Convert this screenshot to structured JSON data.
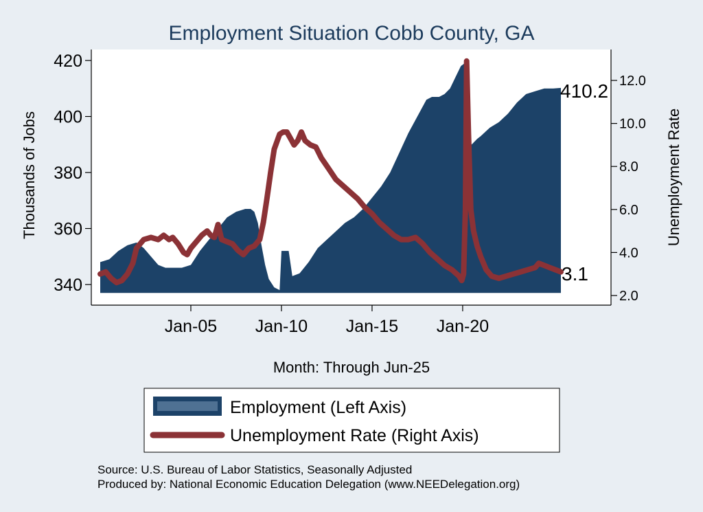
{
  "chart_data": {
    "type": "area+line",
    "title": "Employment Situation Cobb  County, GA",
    "xlabel": "Month: Through Jun-25",
    "ylabel_left": "Thousands of Jobs",
    "ylabel_right": "Unemployment Rate",
    "x_ticks": [
      "Jan-05",
      "Jan-10",
      "Jan-15",
      "Jan-20"
    ],
    "x_tick_years": [
      2005,
      2010,
      2015,
      2020
    ],
    "xlim": [
      2000.0,
      2025.42
    ],
    "y_left_ticks": [
      "340",
      "360",
      "380",
      "400",
      "420"
    ],
    "y_left_values": [
      340,
      360,
      380,
      400,
      420
    ],
    "y_left_range": [
      336,
      422
    ],
    "y_right_ticks": [
      "2.0",
      "4.0",
      "6.0",
      "8.0",
      "10.0",
      "12.0"
    ],
    "y_right_values": [
      2,
      4,
      6,
      8,
      10,
      12
    ],
    "y_right_range": [
      1.9,
      12.4
    ],
    "area_baseline": 337,
    "colors": {
      "employment": "#1c4268",
      "unemployment": "#8b3236",
      "legend_swatch_inner": "#4f7193",
      "background": "#e9eef3",
      "title": "#1c3b5c"
    },
    "end_labels": {
      "employment": "410.2",
      "unemployment": "3.1"
    },
    "series": [
      {
        "name": "Employment (Left Axis)",
        "axis": "left",
        "kind": "area",
        "points": [
          [
            2000.0,
            348
          ],
          [
            2000.5,
            349
          ],
          [
            2001.0,
            352
          ],
          [
            2001.5,
            354
          ],
          [
            2002.0,
            355
          ],
          [
            2002.4,
            353
          ],
          [
            2002.8,
            350
          ],
          [
            2003.2,
            347
          ],
          [
            2003.6,
            346
          ],
          [
            2004.0,
            346
          ],
          [
            2004.5,
            346
          ],
          [
            2005.0,
            347
          ],
          [
            2005.5,
            352
          ],
          [
            2006.0,
            356
          ],
          [
            2006.5,
            360
          ],
          [
            2007.0,
            364
          ],
          [
            2007.5,
            366
          ],
          [
            2008.0,
            367
          ],
          [
            2008.3,
            367
          ],
          [
            2008.5,
            366
          ],
          [
            2008.7,
            362
          ],
          [
            2008.9,
            354
          ],
          [
            2009.1,
            347
          ],
          [
            2009.3,
            342
          ],
          [
            2009.6,
            339
          ],
          [
            2009.9,
            338
          ],
          [
            2010.0,
            352
          ],
          [
            2010.4,
            352
          ],
          [
            2010.6,
            343
          ],
          [
            2011.0,
            344
          ],
          [
            2011.5,
            348
          ],
          [
            2012.0,
            353
          ],
          [
            2012.5,
            356
          ],
          [
            2013.0,
            359
          ],
          [
            2013.5,
            362
          ],
          [
            2014.0,
            364
          ],
          [
            2014.5,
            367
          ],
          [
            2015.0,
            371
          ],
          [
            2015.5,
            375
          ],
          [
            2016.0,
            380
          ],
          [
            2016.5,
            387
          ],
          [
            2017.0,
            394
          ],
          [
            2017.5,
            400
          ],
          [
            2018.0,
            406
          ],
          [
            2018.3,
            407
          ],
          [
            2018.7,
            407
          ],
          [
            2019.0,
            408
          ],
          [
            2019.3,
            410
          ],
          [
            2019.6,
            414
          ],
          [
            2019.9,
            418
          ],
          [
            2020.1,
            419
          ],
          [
            2020.2,
            406
          ],
          [
            2020.3,
            391
          ],
          [
            2020.5,
            390
          ],
          [
            2020.8,
            392
          ],
          [
            2021.0,
            393
          ],
          [
            2021.5,
            396
          ],
          [
            2022.0,
            398
          ],
          [
            2022.5,
            401
          ],
          [
            2023.0,
            405
          ],
          [
            2023.5,
            408
          ],
          [
            2024.0,
            409
          ],
          [
            2024.5,
            410
          ],
          [
            2025.0,
            410
          ],
          [
            2025.42,
            410.2
          ]
        ]
      },
      {
        "name": "Unemployment Rate (Right Axis)",
        "axis": "right",
        "kind": "line",
        "points": [
          [
            2000.0,
            3.0
          ],
          [
            2000.3,
            3.1
          ],
          [
            2000.6,
            2.8
          ],
          [
            2000.9,
            2.6
          ],
          [
            2001.2,
            2.7
          ],
          [
            2001.5,
            3.0
          ],
          [
            2001.8,
            3.5
          ],
          [
            2002.0,
            4.2
          ],
          [
            2002.4,
            4.6
          ],
          [
            2002.8,
            4.7
          ],
          [
            2003.2,
            4.6
          ],
          [
            2003.5,
            4.8
          ],
          [
            2003.8,
            4.6
          ],
          [
            2004.0,
            4.7
          ],
          [
            2004.3,
            4.4
          ],
          [
            2004.6,
            4.0
          ],
          [
            2004.8,
            3.9
          ],
          [
            2005.0,
            4.2
          ],
          [
            2005.3,
            4.5
          ],
          [
            2005.6,
            4.8
          ],
          [
            2005.9,
            5.0
          ],
          [
            2006.1,
            4.8
          ],
          [
            2006.3,
            4.7
          ],
          [
            2006.5,
            5.3
          ],
          [
            2006.7,
            4.6
          ],
          [
            2007.0,
            4.5
          ],
          [
            2007.3,
            4.4
          ],
          [
            2007.6,
            4.1
          ],
          [
            2007.9,
            3.9
          ],
          [
            2008.2,
            4.2
          ],
          [
            2008.5,
            4.3
          ],
          [
            2008.8,
            4.6
          ],
          [
            2009.0,
            5.4
          ],
          [
            2009.2,
            6.5
          ],
          [
            2009.4,
            7.7
          ],
          [
            2009.6,
            8.8
          ],
          [
            2009.9,
            9.5
          ],
          [
            2010.1,
            9.6
          ],
          [
            2010.3,
            9.6
          ],
          [
            2010.5,
            9.3
          ],
          [
            2010.7,
            9.0
          ],
          [
            2010.9,
            9.2
          ],
          [
            2011.1,
            9.6
          ],
          [
            2011.3,
            9.2
          ],
          [
            2011.6,
            9.0
          ],
          [
            2011.9,
            8.9
          ],
          [
            2012.2,
            8.4
          ],
          [
            2012.6,
            7.9
          ],
          [
            2013.0,
            7.4
          ],
          [
            2013.4,
            7.1
          ],
          [
            2013.8,
            6.8
          ],
          [
            2014.2,
            6.5
          ],
          [
            2014.6,
            6.1
          ],
          [
            2015.0,
            5.8
          ],
          [
            2015.4,
            5.4
          ],
          [
            2015.8,
            5.1
          ],
          [
            2016.2,
            4.8
          ],
          [
            2016.6,
            4.6
          ],
          [
            2017.0,
            4.6
          ],
          [
            2017.4,
            4.7
          ],
          [
            2017.8,
            4.4
          ],
          [
            2018.2,
            4.0
          ],
          [
            2018.6,
            3.7
          ],
          [
            2019.0,
            3.4
          ],
          [
            2019.4,
            3.2
          ],
          [
            2019.8,
            2.9
          ],
          [
            2019.95,
            2.7
          ],
          [
            2020.05,
            3.0
          ],
          [
            2020.15,
            6.0
          ],
          [
            2020.22,
            12.9
          ],
          [
            2020.32,
            9.5
          ],
          [
            2020.45,
            6.0
          ],
          [
            2020.6,
            5.0
          ],
          [
            2020.8,
            4.3
          ],
          [
            2021.0,
            3.8
          ],
          [
            2021.3,
            3.2
          ],
          [
            2021.6,
            2.9
          ],
          [
            2022.0,
            2.8
          ],
          [
            2022.4,
            2.9
          ],
          [
            2022.8,
            3.0
          ],
          [
            2023.2,
            3.1
          ],
          [
            2023.6,
            3.2
          ],
          [
            2024.0,
            3.3
          ],
          [
            2024.2,
            3.5
          ],
          [
            2024.5,
            3.4
          ],
          [
            2024.8,
            3.3
          ],
          [
            2025.1,
            3.2
          ],
          [
            2025.42,
            3.1
          ]
        ]
      }
    ],
    "legend": {
      "placement": "bottom",
      "items": [
        {
          "label": "Employment (Left Axis)",
          "kind": "area"
        },
        {
          "label": "Unemployment Rate (Right Axis)",
          "kind": "line"
        }
      ]
    },
    "notes": [
      "Source: U.S. Bureau of Labor Statistics, Seasonally Adjusted",
      "Produced by: National Economic Education Delegation (www.NEEDelegation.org)"
    ]
  }
}
